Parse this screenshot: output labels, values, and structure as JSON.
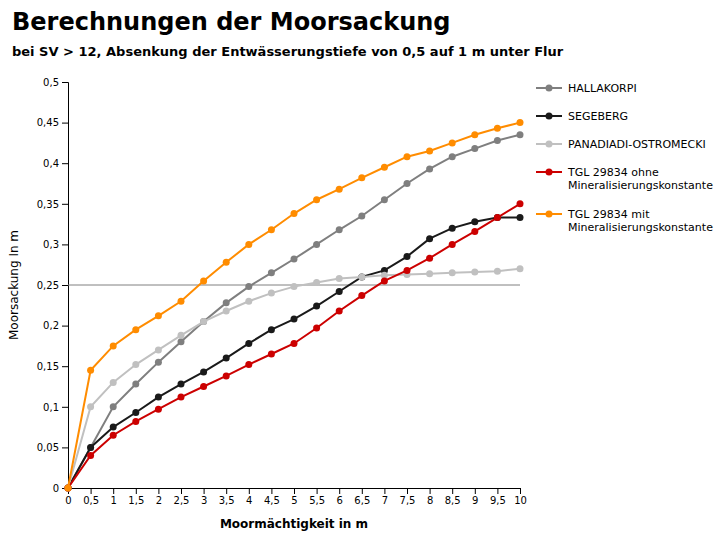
{
  "chart_data": {
    "type": "line",
    "title": "Berechnungen der Moorsackung",
    "subtitle": "bei SV > 12, Absenkung der Entwässerungstiefe von 0,5 auf 1 m unter Flur",
    "x_label": "Moormächtigkeit in m",
    "y_label": "Moorsackung In m",
    "x": [
      0,
      0.5,
      1,
      1.5,
      2,
      2.5,
      3,
      3.5,
      4,
      4.5,
      5,
      5.5,
      6,
      6.5,
      7,
      7.5,
      8,
      8.5,
      9,
      9.5,
      10
    ],
    "series": [
      {
        "name": "HALLAKORPI",
        "color": "#7f7f7f",
        "marker": "circle",
        "values": [
          0,
          0.05,
          0.1,
          0.128,
          0.155,
          0.18,
          0.205,
          0.228,
          0.248,
          0.265,
          0.282,
          0.3,
          0.318,
          0.335,
          0.355,
          0.375,
          0.393,
          0.408,
          0.418,
          0.428,
          0.435
        ]
      },
      {
        "name": "SEGEBERG",
        "color": "#1a1a1a",
        "marker": "circle",
        "values": [
          0,
          0.05,
          0.075,
          0.093,
          0.112,
          0.128,
          0.143,
          0.16,
          0.178,
          0.195,
          0.208,
          0.224,
          0.242,
          0.26,
          0.268,
          0.285,
          0.307,
          0.32,
          0.328,
          0.333,
          0.333
        ]
      },
      {
        "name": "PANADIADI-OSTROMECKI",
        "color": "#c0c0c0",
        "marker": "circle",
        "values": [
          0,
          0.1,
          0.13,
          0.152,
          0.17,
          0.188,
          0.205,
          0.218,
          0.23,
          0.24,
          0.248,
          0.253,
          0.258,
          0.26,
          0.262,
          0.263,
          0.264,
          0.265,
          0.266,
          0.267,
          0.27
        ]
      },
      {
        "name": "TGL 29834 ohne\nMineralisierungskonstante",
        "color": "#cc0000",
        "marker": "circle",
        "values": [
          0,
          0.04,
          0.065,
          0.082,
          0.097,
          0.112,
          0.125,
          0.138,
          0.152,
          0.165,
          0.178,
          0.197,
          0.218,
          0.237,
          0.255,
          0.268,
          0.283,
          0.3,
          0.316,
          0.333,
          0.35
        ]
      },
      {
        "name": "TGL 29834 mit\nMineralisierungskonstante",
        "color": "#ff8c00",
        "marker": "circle",
        "values": [
          0,
          0.145,
          0.175,
          0.195,
          0.212,
          0.23,
          0.255,
          0.278,
          0.3,
          0.318,
          0.338,
          0.355,
          0.368,
          0.382,
          0.395,
          0.408,
          0.415,
          0.425,
          0.435,
          0.443,
          0.45
        ]
      }
    ],
    "reference_line": 0.25,
    "xlim": [
      0,
      10
    ],
    "ylim": [
      0,
      0.5
    ],
    "xticks": [
      0,
      {
        "value": 0.5,
        "label": "0,5"
      },
      1,
      {
        "value": 1.5,
        "label": "1,5"
      },
      2,
      {
        "value": 2.5,
        "label": "2,5"
      },
      3,
      {
        "value": 3.5,
        "label": "3,5"
      },
      4,
      {
        "value": 4.5,
        "label": "4,5"
      },
      5,
      {
        "value": 5.5,
        "label": "5,5"
      },
      6,
      {
        "value": 6.5,
        "label": "6,5"
      },
      7,
      {
        "value": 7.5,
        "label": "7,5"
      },
      8,
      {
        "value": 8.5,
        "label": "8,5"
      },
      9,
      {
        "value": 9.5,
        "label": "9,5"
      },
      10
    ],
    "yticks": [
      0,
      {
        "value": 0.05,
        "label": "0,05"
      },
      {
        "value": 0.1,
        "label": "0,1"
      },
      {
        "value": 0.15,
        "label": "0,15"
      },
      {
        "value": 0.2,
        "label": "0,2"
      },
      {
        "value": 0.25,
        "label": "0,25"
      },
      {
        "value": 0.3,
        "label": "0,3"
      },
      {
        "value": 0.35,
        "label": "0,35"
      },
      {
        "value": 0.4,
        "label": "0,4"
      },
      {
        "value": 0.45,
        "label": "0,45"
      },
      {
        "value": 0.5,
        "label": "0,5"
      }
    ],
    "grid": false,
    "legend": "right"
  }
}
